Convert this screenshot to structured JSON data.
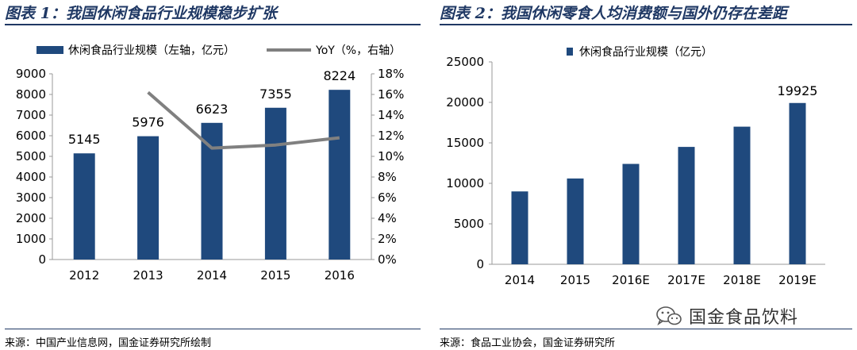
{
  "left": {
    "title": "图表 1：我国休闲食品行业规模稳步扩张",
    "source": "来源：中国产业信息网，国金证券研究所绘制"
  },
  "right": {
    "title": "图表 2：我国休闲零食人均消费额与国外仍存在差距",
    "source": "来源：食品工业协会，国金证券研究所"
  },
  "watermark": {
    "text": "国金食品饮料",
    "icon": "wechat-icon"
  },
  "colors": {
    "bar": "#1f497d",
    "line": "#808080",
    "rule": "#1f3864"
  },
  "chart_data": [
    {
      "type": "bar",
      "categories": [
        "2012",
        "2013",
        "2014",
        "2015",
        "2016"
      ],
      "series": [
        {
          "name": "休闲食品行业规模（左轴，亿元）",
          "type": "bar",
          "axis": "left",
          "values": [
            5145,
            5976,
            6623,
            7355,
            8224
          ],
          "data_labels": [
            "5145",
            "5976",
            "6623",
            "7355",
            "8224"
          ]
        },
        {
          "name": "YoY（%，右轴）",
          "type": "line",
          "axis": "right",
          "values": [
            null,
            16.2,
            10.8,
            11.1,
            11.8
          ]
        }
      ],
      "ylim": [
        0,
        9000
      ],
      "yticks": [
        "0",
        "1000",
        "2000",
        "3000",
        "4000",
        "5000",
        "6000",
        "7000",
        "8000",
        "9000"
      ],
      "y2lim": [
        0,
        18
      ],
      "y2ticks": [
        "0%",
        "2%",
        "4%",
        "6%",
        "8%",
        "10%",
        "12%",
        "14%",
        "16%",
        "18%"
      ],
      "legend_position": "top"
    },
    {
      "type": "bar",
      "categories": [
        "2014",
        "2015",
        "2016E",
        "2017E",
        "2018E",
        "2019E"
      ],
      "series": [
        {
          "name": "休闲食品行业规模（亿元）",
          "values": [
            9000,
            10600,
            12400,
            14500,
            17000,
            19925
          ],
          "data_labels": [
            "",
            "",
            "",
            "",
            "",
            "19925"
          ]
        }
      ],
      "ylim": [
        0,
        25000
      ],
      "yticks": [
        "0",
        "5000",
        "10000",
        "15000",
        "20000",
        "25000"
      ],
      "legend_position": "top"
    }
  ]
}
